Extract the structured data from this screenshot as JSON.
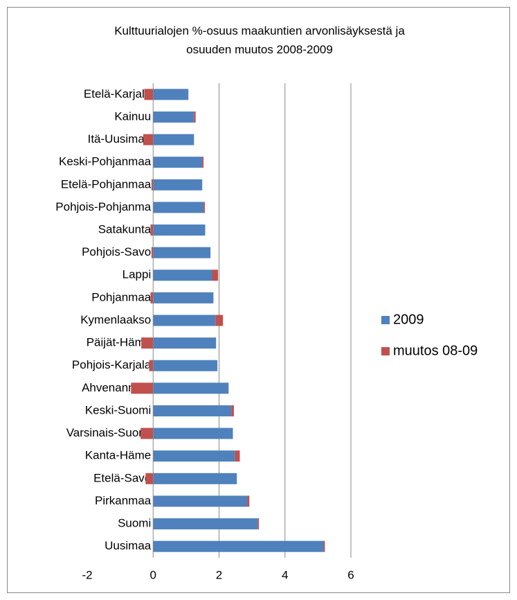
{
  "chart_data": {
    "type": "bar",
    "orientation": "horizontal",
    "stacked": true,
    "title": "Kulttuurialojen %-osuus maakuntien arvonlisäyksestä ja osuuden muutos 2008-2009",
    "categories": [
      "Etelä-Karjala",
      "Kainuu",
      "Itä-Uusimaa",
      "Keski-Pohjanmaa",
      "Etelä-Pohjanmaa",
      "Pohjois-Pohjanma",
      "Satakunta",
      "Pohjois-Savo",
      "Lappi",
      "Pohjanmaa",
      "Kymenlaakso",
      "Päijät-Häme",
      "Pohjois-Karjala",
      "Ahvenanmaa",
      "Keski-Suomi",
      "Varsinais-Suomi",
      "Kanta-Häme",
      "Etelä-Savo",
      "Pirkanmaa",
      "Suomi",
      "Uusimaa"
    ],
    "series": [
      {
        "name": "2009",
        "color": "#4f81bd",
        "values": [
          1.07,
          1.24,
          1.24,
          1.49,
          1.49,
          1.53,
          1.58,
          1.74,
          1.79,
          1.83,
          1.89,
          1.91,
          1.95,
          2.29,
          2.37,
          2.42,
          2.48,
          2.54,
          2.86,
          3.17,
          5.17
        ]
      },
      {
        "name": "muutos 08-09",
        "color": "#c0504d",
        "values": [
          -0.27,
          0.05,
          -0.3,
          0.04,
          -0.05,
          0.04,
          -0.08,
          -0.05,
          0.18,
          -0.08,
          0.23,
          -0.36,
          -0.12,
          -0.67,
          0.08,
          -0.38,
          0.15,
          -0.23,
          0.06,
          0.04,
          0.04
        ]
      }
    ],
    "xlim": [
      -2,
      6
    ],
    "xticks": [
      -2,
      0,
      2,
      4,
      6
    ],
    "grid": true,
    "legend": "right"
  }
}
